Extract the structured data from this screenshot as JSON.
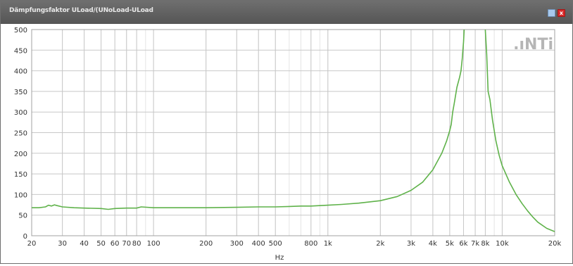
{
  "window": {
    "title": "Dämpfungsfaktor ULoad/(UNoLoad-ULoad",
    "restore_icon": "restore-icon",
    "close_icon": "close-icon",
    "close_glyph": "x"
  },
  "brand": {
    "logo_text": ".ıNTi"
  },
  "colors": {
    "series": "#5fb24a",
    "grid_major": "#c8c8c8",
    "grid_minor": "#e4e4e4"
  },
  "chart_data": {
    "type": "line",
    "title": "Dämpfungsfaktor ULoad/(UNoLoad-ULoad",
    "xlabel": "Hz",
    "ylabel": "",
    "x_scale": "log",
    "xlim": [
      20,
      20000
    ],
    "ylim": [
      0,
      500
    ],
    "grid": true,
    "legend": "none",
    "x_ticks": [
      {
        "value": 20,
        "label": "20"
      },
      {
        "value": 30,
        "label": "30"
      },
      {
        "value": 40,
        "label": "40"
      },
      {
        "value": 50,
        "label": "50"
      },
      {
        "value": 60,
        "label": "60"
      },
      {
        "value": 70,
        "label": "70"
      },
      {
        "value": 80,
        "label": "80"
      },
      {
        "value": 100,
        "label": "100"
      },
      {
        "value": 200,
        "label": "200"
      },
      {
        "value": 300,
        "label": "300"
      },
      {
        "value": 400,
        "label": "400"
      },
      {
        "value": 500,
        "label": "500"
      },
      {
        "value": 800,
        "label": "800"
      },
      {
        "value": 1000,
        "label": "1k"
      },
      {
        "value": 2000,
        "label": "2k"
      },
      {
        "value": 3000,
        "label": "3k"
      },
      {
        "value": 4000,
        "label": "4k"
      },
      {
        "value": 5000,
        "label": "5k"
      },
      {
        "value": 6000,
        "label": "6k"
      },
      {
        "value": 7000,
        "label": "7k"
      },
      {
        "value": 8000,
        "label": "8k"
      },
      {
        "value": 10000,
        "label": "10k"
      },
      {
        "value": 20000,
        "label": "20k"
      }
    ],
    "y_ticks": [
      {
        "value": 0,
        "label": "0"
      },
      {
        "value": 50,
        "label": "50"
      },
      {
        "value": 100,
        "label": "100"
      },
      {
        "value": 150,
        "label": "150"
      },
      {
        "value": 200,
        "label": "200"
      },
      {
        "value": 250,
        "label": "250"
      },
      {
        "value": 300,
        "label": "300"
      },
      {
        "value": 350,
        "label": "350"
      },
      {
        "value": 400,
        "label": "400"
      },
      {
        "value": 450,
        "label": "450"
      },
      {
        "value": 500,
        "label": "500"
      }
    ],
    "series": [
      {
        "segments": [
          [
            [
              20,
              68
            ],
            [
              22,
              68
            ],
            [
              24,
              70
            ],
            [
              25,
              74
            ],
            [
              26,
              72
            ],
            [
              27,
              75
            ],
            [
              28,
              73
            ],
            [
              30,
              70
            ],
            [
              35,
              68
            ],
            [
              40,
              67
            ],
            [
              50,
              66
            ],
            [
              55,
              64
            ],
            [
              60,
              66
            ],
            [
              70,
              67
            ],
            [
              80,
              67
            ],
            [
              85,
              70
            ],
            [
              100,
              68
            ],
            [
              150,
              68
            ],
            [
              200,
              68
            ],
            [
              300,
              69
            ],
            [
              400,
              70
            ],
            [
              500,
              70
            ],
            [
              600,
              71
            ],
            [
              700,
              72
            ],
            [
              800,
              72
            ],
            [
              1000,
              74
            ],
            [
              1200,
              76
            ],
            [
              1500,
              79
            ],
            [
              2000,
              85
            ],
            [
              2500,
              95
            ],
            [
              3000,
              110
            ],
            [
              3500,
              130
            ],
            [
              4000,
              160
            ],
            [
              4500,
              200
            ],
            [
              4800,
              230
            ],
            [
              5000,
              255
            ],
            [
              5100,
              270
            ],
            [
              5200,
              300
            ],
            [
              5300,
              320
            ],
            [
              5500,
              360
            ],
            [
              5700,
              385
            ],
            [
              5800,
              400
            ],
            [
              5900,
              430
            ],
            [
              6000,
              470
            ],
            [
              6050,
              500
            ]
          ],
          [
            [
              8000,
              500
            ],
            [
              8150,
              440
            ],
            [
              8300,
              350
            ],
            [
              8500,
              330
            ],
            [
              8800,
              280
            ],
            [
              9200,
              230
            ],
            [
              9600,
              195
            ],
            [
              10000,
              170
            ],
            [
              11000,
              130
            ],
            [
              12000,
              100
            ],
            [
              13000,
              78
            ],
            [
              14000,
              60
            ],
            [
              15000,
              45
            ],
            [
              16000,
              33
            ],
            [
              18000,
              18
            ],
            [
              20000,
              10
            ]
          ]
        ]
      }
    ]
  }
}
